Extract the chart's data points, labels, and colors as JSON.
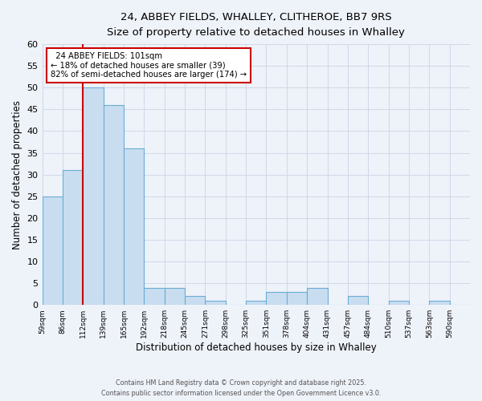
{
  "title_line1": "24, ABBEY FIELDS, WHALLEY, CLITHEROE, BB7 9RS",
  "title_line2": "Size of property relative to detached houses in Whalley",
  "xlabel": "Distribution of detached houses by size in Whalley",
  "ylabel": "Number of detached properties",
  "bin_labels": [
    "59sqm",
    "86sqm",
    "112sqm",
    "139sqm",
    "165sqm",
    "192sqm",
    "218sqm",
    "245sqm",
    "271sqm",
    "298sqm",
    "325sqm",
    "351sqm",
    "378sqm",
    "404sqm",
    "431sqm",
    "457sqm",
    "484sqm",
    "510sqm",
    "537sqm",
    "563sqm",
    "590sqm"
  ],
  "bar_heights": [
    25,
    31,
    50,
    46,
    36,
    4,
    4,
    2,
    1,
    0,
    1,
    3,
    3,
    4,
    0,
    2,
    0,
    1,
    0,
    1,
    0
  ],
  "bar_color": "#c9ddf0",
  "bar_edge_color": "#6aadd5",
  "vline_x": 2.0,
  "vline_color": "#cc0000",
  "annotation_title": "24 ABBEY FIELDS: 101sqm",
  "annotation_line2": "← 18% of detached houses are smaller (39)",
  "annotation_line3": "82% of semi-detached houses are larger (174) →",
  "annotation_box_color": "#ffffff",
  "annotation_box_edge": "#cc0000",
  "ylim": [
    0,
    60
  ],
  "yticks": [
    0,
    5,
    10,
    15,
    20,
    25,
    30,
    35,
    40,
    45,
    50,
    55,
    60
  ],
  "footer_line1": "Contains HM Land Registry data © Crown copyright and database right 2025.",
  "footer_line2": "Contains public sector information licensed under the Open Government Licence v3.0.",
  "bg_color": "#eef2f9",
  "grid_color": "#d0d8e8"
}
